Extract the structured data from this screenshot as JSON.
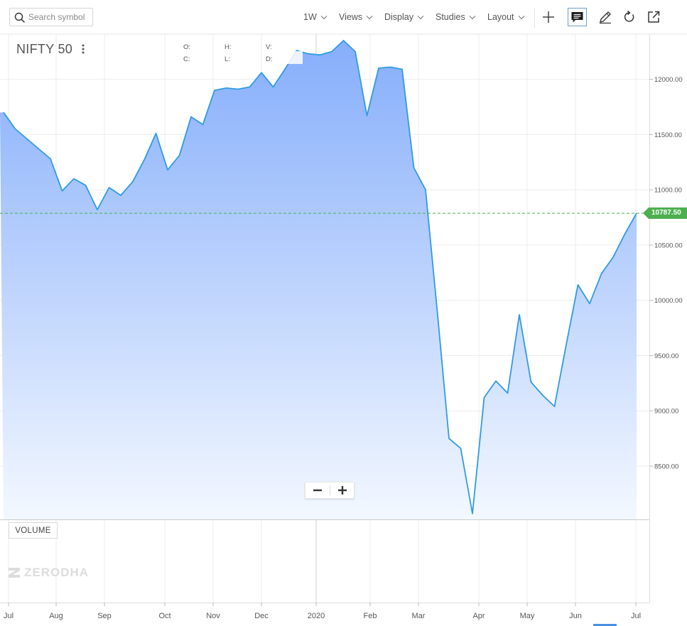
{
  "toolbar": {
    "search_placeholder": "Search symbol",
    "interval": "1W",
    "views": "Views",
    "display": "Display",
    "studies": "Studies",
    "layout": "Layout",
    "icons": [
      "search-icon",
      "chevron-down-icon",
      "crosshair-icon",
      "comment-icon",
      "pencil-icon",
      "refresh-icon",
      "popout-icon"
    ]
  },
  "legend": {
    "symbol": "NIFTY 50",
    "o": "O:",
    "h": "H:",
    "v": "V:",
    "c": "C:",
    "l": "L:",
    "d": "D:"
  },
  "last_price": "10787.50",
  "volume_label": "VOLUME",
  "brand": "ZERODHA",
  "zoom": {
    "minus": "−",
    "plus": "+"
  },
  "colors": {
    "line": "#2f9be3",
    "fill_top": "#86aefb",
    "fill_bottom": "#f3f8ff",
    "last_price": "#4caf50",
    "grid": "#ececec"
  },
  "chart_data": {
    "type": "area",
    "title": "NIFTY 50",
    "interval": "1W",
    "x_ticks": [
      "Jul",
      "Aug",
      "Sep",
      "Oct",
      "Nov",
      "Dec",
      "2020",
      "Feb",
      "Mar",
      "Apr",
      "May",
      "Jun",
      "Jul"
    ],
    "y_ticks": [
      "12000.00",
      "11500.00",
      "11000.00",
      "10500.00",
      "10000.00",
      "9500.00",
      "9000.00",
      "8500.00"
    ],
    "ylim": [
      8050,
      12350
    ],
    "last_value": 10787.5,
    "grid": true,
    "series": [
      {
        "values": [
          11700,
          11550,
          11460,
          11370,
          11280,
          10990,
          11100,
          11040,
          10820,
          11020,
          10950,
          11070,
          11270,
          11510,
          11180,
          11310,
          11660,
          11590,
          11900,
          11920,
          11910,
          11930,
          12060,
          11930,
          12090,
          12260,
          12230,
          12220,
          12250,
          12350,
          12250,
          11670,
          12100,
          12110,
          12090,
          11200,
          11000,
          9900,
          8750,
          8660,
          8070,
          9120,
          9270,
          9160,
          9870,
          9260,
          9140,
          9040,
          9600,
          10140,
          9970,
          10240,
          10390,
          10600,
          10787.5
        ]
      }
    ]
  }
}
